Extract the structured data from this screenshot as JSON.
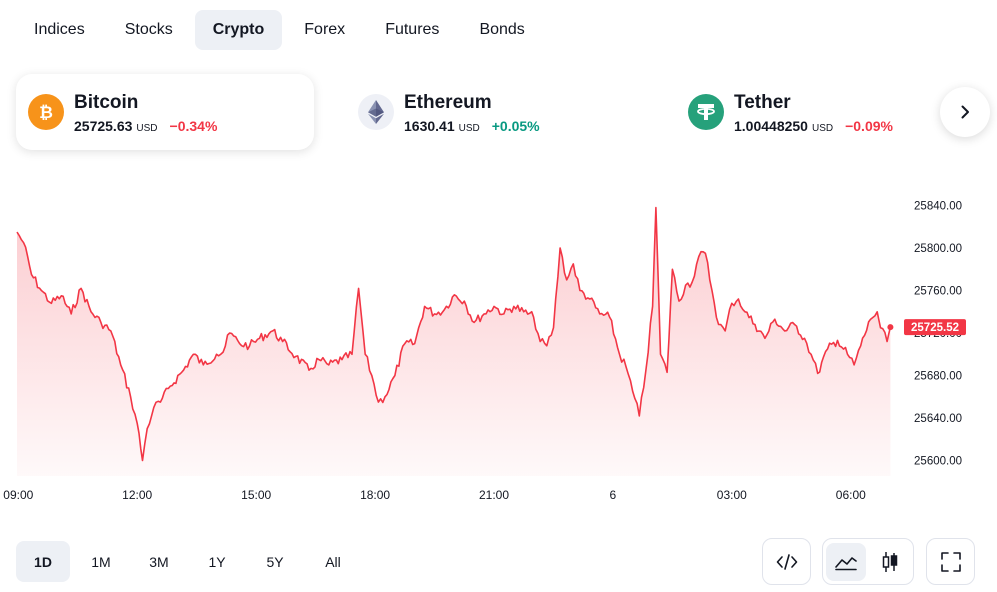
{
  "tabs": [
    {
      "label": "Indices"
    },
    {
      "label": "Stocks"
    },
    {
      "label": "Crypto"
    },
    {
      "label": "Forex"
    },
    {
      "label": "Futures"
    },
    {
      "label": "Bonds"
    }
  ],
  "active_tab": "Crypto",
  "tickers": [
    {
      "name": "Bitcoin",
      "price": "25725.63",
      "currency": "USD",
      "change": "−0.34%",
      "direction": "down",
      "icon": "bitcoin-icon"
    },
    {
      "name": "Ethereum",
      "price": "1630.41",
      "currency": "USD",
      "change": "+0.05%",
      "direction": "up",
      "icon": "ethereum-icon"
    },
    {
      "name": "Tether",
      "price": "1.00448250",
      "currency": "USD",
      "change": "−0.09%",
      "direction": "down",
      "icon": "tether-icon"
    }
  ],
  "next_button_icon": "chevron-right-icon",
  "chart_data": {
    "type": "area",
    "series": [
      {
        "name": "Bitcoin",
        "color": "#f23645"
      }
    ],
    "x_ticks": [
      "09:00",
      "12:00",
      "15:00",
      "18:00",
      "21:00",
      "6",
      "03:00",
      "06:00"
    ],
    "y_ticks": [
      "25840.00",
      "25800.00",
      "25760.00",
      "25720.00",
      "25680.00",
      "25640.00",
      "25600.00"
    ],
    "ylim": [
      25590,
      25850
    ],
    "last_value": 25725.52,
    "last_label": "25725.52",
    "points": [
      [
        "08:58",
        25815
      ],
      [
        "09:08",
        25805
      ],
      [
        "09:20",
        25775
      ],
      [
        "09:35",
        25760
      ],
      [
        "09:50",
        25748
      ],
      [
        "10:05",
        25755
      ],
      [
        "10:20",
        25738
      ],
      [
        "10:35",
        25762
      ],
      [
        "10:50",
        25740
      ],
      [
        "11:05",
        25730
      ],
      [
        "11:20",
        25722
      ],
      [
        "11:35",
        25690
      ],
      [
        "11:50",
        25660
      ],
      [
        "12:00",
        25635
      ],
      [
        "12:08",
        25600
      ],
      [
        "12:15",
        25630
      ],
      [
        "12:25",
        25650
      ],
      [
        "12:35",
        25655
      ],
      [
        "12:50",
        25670
      ],
      [
        "13:10",
        25685
      ],
      [
        "13:25",
        25700
      ],
      [
        "13:40",
        25690
      ],
      [
        "14:00",
        25700
      ],
      [
        "14:10",
        25702
      ],
      [
        "14:20",
        25720
      ],
      [
        "14:35",
        25710
      ],
      [
        "14:50",
        25708
      ],
      [
        "15:05",
        25715
      ],
      [
        "15:25",
        25722
      ],
      [
        "15:40",
        25712
      ],
      [
        "16:00",
        25698
      ],
      [
        "16:20",
        25685
      ],
      [
        "16:35",
        25695
      ],
      [
        "16:50",
        25690
      ],
      [
        "17:10",
        25695
      ],
      [
        "17:25",
        25700
      ],
      [
        "17:35",
        25762
      ],
      [
        "17:45",
        25700
      ],
      [
        "17:55",
        25680
      ],
      [
        "18:05",
        25655
      ],
      [
        "18:15",
        25660
      ],
      [
        "18:30",
        25680
      ],
      [
        "18:45",
        25710
      ],
      [
        "19:00",
        25710
      ],
      [
        "19:15",
        25745
      ],
      [
        "19:30",
        25738
      ],
      [
        "19:45",
        25742
      ],
      [
        "20:00",
        25756
      ],
      [
        "20:15",
        25750
      ],
      [
        "20:30",
        25730
      ],
      [
        "20:45",
        25738
      ],
      [
        "21:00",
        25745
      ],
      [
        "21:15",
        25738
      ],
      [
        "21:30",
        25745
      ],
      [
        "21:45",
        25740
      ],
      [
        "22:00",
        25735
      ],
      [
        "22:10",
        25712
      ],
      [
        "22:20",
        25708
      ],
      [
        "22:30",
        25725
      ],
      [
        "22:40",
        25800
      ],
      [
        "22:50",
        25770
      ],
      [
        "23:00",
        25785
      ],
      [
        "23:10",
        25760
      ],
      [
        "23:25",
        25752
      ],
      [
        "23:40",
        25738
      ],
      [
        "23:55",
        25735
      ],
      [
        "00:10",
        25700
      ],
      [
        "00:20",
        25688
      ],
      [
        "00:30",
        25665
      ],
      [
        "00:40",
        25642
      ],
      [
        "00:50",
        25685
      ],
      [
        "01:00",
        25745
      ],
      [
        "01:05",
        25838
      ],
      [
        "01:12",
        25700
      ],
      [
        "01:22",
        25683
      ],
      [
        "01:30",
        25780
      ],
      [
        "01:40",
        25750
      ],
      [
        "01:50",
        25765
      ],
      [
        "02:00",
        25768
      ],
      [
        "02:10",
        25792
      ],
      [
        "02:20",
        25795
      ],
      [
        "02:30",
        25760
      ],
      [
        "02:40",
        25728
      ],
      [
        "02:50",
        25722
      ],
      [
        "03:00",
        25748
      ],
      [
        "03:10",
        25752
      ],
      [
        "03:20",
        25740
      ],
      [
        "03:35",
        25728
      ],
      [
        "03:50",
        25715
      ],
      [
        "04:05",
        25733
      ],
      [
        "04:20",
        25722
      ],
      [
        "04:35",
        25728
      ],
      [
        "04:50",
        25715
      ],
      [
        "05:00",
        25700
      ],
      [
        "05:10",
        25682
      ],
      [
        "05:25",
        25705
      ],
      [
        "05:40",
        25713
      ],
      [
        "05:55",
        25700
      ],
      [
        "06:05",
        25690
      ],
      [
        "06:15",
        25708
      ],
      [
        "06:30",
        25733
      ],
      [
        "06:40",
        25740
      ],
      [
        "06:45",
        25725
      ],
      [
        "06:55",
        25712
      ],
      [
        "07:00",
        25725.52
      ]
    ]
  },
  "ranges": [
    {
      "label": "1D"
    },
    {
      "label": "1M"
    },
    {
      "label": "3M"
    },
    {
      "label": "1Y"
    },
    {
      "label": "5Y"
    },
    {
      "label": "All"
    }
  ],
  "active_range": "1D",
  "toolbar": {
    "embed_icon": "code-icon",
    "area_icon": "area-chart-icon",
    "candle_icon": "candlestick-icon",
    "fullscreen_icon": "fullscreen-icon"
  }
}
